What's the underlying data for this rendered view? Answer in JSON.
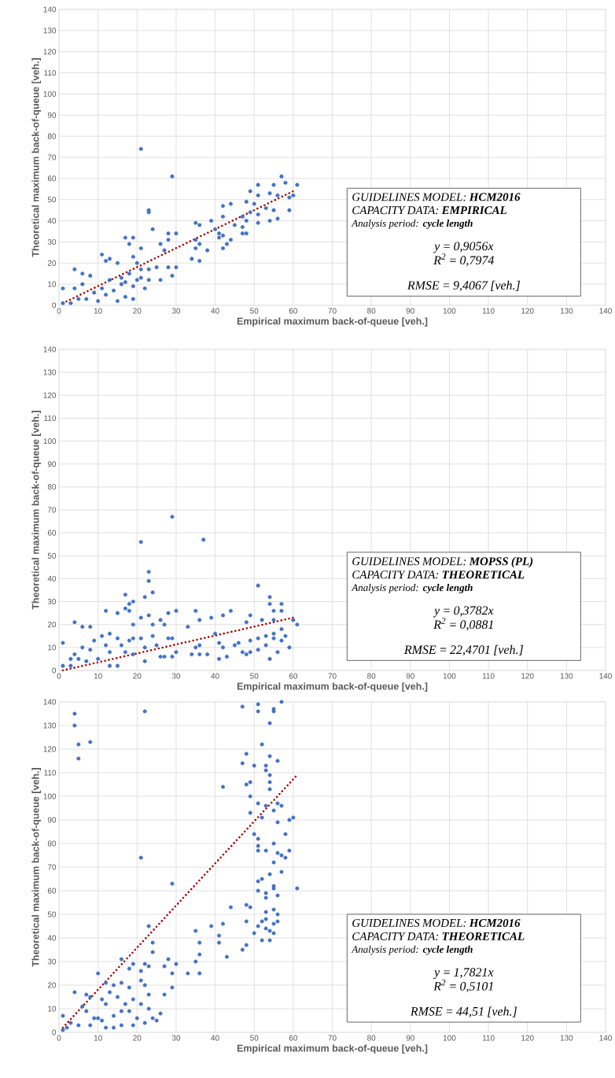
{
  "chart_data": [
    {
      "type": "scatter",
      "xlabel": "Empirical maximum back-of-queue [veh.]",
      "ylabel": "Theoretical maximum back-of-queue [veh.]",
      "xlim": [
        0,
        140
      ],
      "ylim": [
        0,
        140
      ],
      "xticks": [
        0,
        10,
        20,
        30,
        40,
        50,
        60,
        70,
        80,
        90,
        100,
        110,
        120,
        130,
        140
      ],
      "yticks": [
        0,
        10,
        20,
        30,
        40,
        50,
        60,
        70,
        80,
        90,
        100,
        110,
        120,
        130,
        140
      ],
      "grid": true,
      "marker": "circle",
      "annotations": [
        "GUIDELINES MODEL:  **HCM2016**",
        "CAPACITY DATA:  **EMPIRICAL**",
        "Analysis period: **cycle length**",
        "y = 0,9056x",
        "R$^{2}$ = 0,7974",
        "RMSE = 9,4067 [veh.]"
      ],
      "series": [
        {
          "type": "scatter",
          "color": "#4472c4",
          "x": [
            21,
            29,
            57,
            61,
            51,
            55,
            58,
            49,
            51,
            54,
            56,
            59,
            60,
            50,
            53,
            55,
            59,
            44,
            42,
            48,
            49,
            51,
            54,
            56,
            51,
            47,
            48,
            39,
            35,
            36,
            42,
            45,
            47,
            47,
            48,
            40,
            41,
            42,
            41,
            44,
            43,
            42,
            38,
            35,
            36,
            35,
            34,
            36,
            30,
            28,
            28,
            30,
            29,
            28,
            27,
            26,
            23,
            23,
            24,
            21,
            17,
            19,
            18,
            15,
            11,
            12,
            13,
            4,
            6,
            8,
            1,
            4,
            6,
            12,
            13,
            16,
            18,
            20,
            22,
            26,
            23,
            25,
            21,
            17,
            19,
            10,
            15,
            7,
            3,
            1,
            5,
            9,
            11,
            14,
            16,
            17,
            19,
            21,
            23,
            19,
            20
          ],
          "values": [
            74,
            61,
            61,
            57,
            57,
            57,
            58,
            54,
            52,
            53,
            52,
            51,
            52,
            48,
            46,
            45,
            45,
            48,
            47,
            49,
            44,
            43,
            40,
            41,
            39,
            42,
            40,
            40,
            39,
            38,
            42,
            38,
            37,
            34,
            34,
            36,
            34,
            33,
            32,
            31,
            29,
            27,
            26,
            31,
            29,
            27,
            22,
            21,
            34,
            34,
            31,
            18,
            14,
            18,
            26,
            29,
            45,
            44,
            36,
            27,
            32,
            32,
            29,
            20,
            24,
            21,
            22,
            17,
            15,
            14,
            8,
            8,
            10,
            5,
            12,
            13,
            15,
            12,
            8,
            12,
            12,
            18,
            17,
            4,
            3,
            2,
            2,
            3,
            1,
            1,
            3,
            6,
            8,
            7,
            10,
            11,
            9,
            13,
            17,
            23,
            20
          ]
        },
        {
          "type": "line",
          "color": "#a50000",
          "line_style": "dotted",
          "marker": "none",
          "x": [
            1,
            60
          ],
          "values": [
            1,
            54
          ]
        }
      ]
    },
    {
      "type": "scatter",
      "xlabel": "Empirical maximum back-of-queue [veh.]",
      "ylabel": "Theoretical maximum back-of-queue [veh.]",
      "xlim": [
        0,
        140
      ],
      "ylim": [
        0,
        140
      ],
      "xticks": [
        0,
        10,
        20,
        30,
        40,
        50,
        60,
        70,
        80,
        90,
        100,
        110,
        120,
        130,
        140
      ],
      "yticks": [
        0,
        10,
        20,
        30,
        40,
        50,
        60,
        70,
        80,
        90,
        100,
        110,
        120,
        130,
        140
      ],
      "grid": true,
      "marker": "circle",
      "annotations": [
        "GUIDELINES MODEL:  **MOPSS (PL)**",
        "CAPACITY DATA:  **THEORETICAL**",
        "Analysis period: **cycle length**",
        "y = 0,3782x",
        "R$^{2}$ = 0,0881",
        "RMSE = 22,4701 [veh.]"
      ],
      "series": [
        {
          "type": "scatter",
          "color": "#4472c4",
          "x": [
            29,
            37,
            21,
            23,
            23,
            24,
            51,
            54,
            54,
            57,
            55,
            57,
            17,
            18,
            19,
            22,
            12,
            15,
            4,
            6,
            8,
            17,
            18,
            21,
            23,
            28,
            30,
            35,
            36,
            39,
            33,
            42,
            44,
            49,
            48,
            52,
            55,
            60,
            61,
            26,
            24,
            27,
            19,
            29,
            28,
            30,
            27,
            29,
            34,
            36,
            38,
            35,
            36,
            41,
            43,
            42,
            41,
            45,
            46,
            47,
            48,
            49,
            51,
            54,
            56,
            59,
            51,
            53,
            55,
            57,
            58,
            53,
            55,
            57,
            49,
            40,
            1,
            1,
            3,
            4,
            6,
            8,
            9,
            11,
            12,
            13,
            13,
            15,
            15,
            13,
            16,
            17,
            18,
            19,
            19,
            21,
            22,
            22,
            24,
            25,
            26,
            7,
            5,
            10,
            3
          ],
          "values": [
            67,
            57,
            56,
            43,
            39,
            34,
            37,
            32,
            29,
            29,
            26,
            26,
            33,
            29,
            30,
            32,
            26,
            25,
            21,
            19,
            19,
            27,
            26,
            23,
            24,
            25,
            26,
            26,
            22,
            23,
            19,
            24,
            26,
            24,
            21,
            22,
            22,
            22,
            20,
            22,
            20,
            20,
            20,
            14,
            14,
            8,
            6,
            6,
            7,
            7,
            7,
            10,
            11,
            5,
            6,
            10,
            12,
            11,
            12,
            8,
            7,
            8,
            9,
            5,
            8,
            10,
            14,
            15,
            16,
            13,
            15,
            11,
            14,
            18,
            13,
            16,
            12,
            2,
            5,
            7,
            10,
            9,
            13,
            15,
            11,
            16,
            8,
            14,
            2,
            2,
            11,
            8,
            13,
            7,
            14,
            14,
            10,
            4,
            15,
            11,
            6,
            4,
            5,
            5,
            2
          ]
        },
        {
          "type": "line",
          "color": "#a50000",
          "line_style": "dotted",
          "marker": "none",
          "x": [
            1,
            60
          ],
          "values": [
            0,
            23
          ]
        }
      ]
    },
    {
      "type": "scatter",
      "xlabel": "Empirical maximum back-of-queue [veh.]",
      "ylabel": "Theoretical maximum back-of-queue [veh.]",
      "xlim": [
        0,
        140
      ],
      "ylim": [
        0,
        140
      ],
      "xticks": [
        0,
        10,
        20,
        30,
        40,
        50,
        60,
        70,
        80,
        90,
        100,
        110,
        120,
        130,
        140
      ],
      "yticks": [
        0,
        10,
        20,
        30,
        40,
        50,
        60,
        70,
        80,
        90,
        100,
        110,
        120,
        130,
        140
      ],
      "grid": true,
      "marker": "circle",
      "annotations": [
        "GUIDELINES MODEL:  **HCM2016**",
        "CAPACITY DATA:  **THEORETICAL**",
        "Analysis period: **cycle length**",
        "y = 1,7821x",
        "R$^{2}$ = 0,5101",
        "RMSE = 44,51 [veh.]"
      ],
      "series": [
        {
          "type": "scatter",
          "color": "#4472c4",
          "x": [
            4,
            4,
            5,
            5,
            8,
            22,
            47,
            51,
            51,
            55,
            55,
            57,
            54,
            52,
            48,
            47,
            50,
            54,
            53,
            53,
            54,
            56,
            54,
            54,
            42,
            48,
            49,
            49,
            51,
            53,
            55,
            56,
            57,
            49,
            52,
            56,
            59,
            60,
            50,
            51,
            51,
            51,
            53,
            55,
            58,
            56,
            57,
            58,
            59,
            55,
            57,
            54,
            52,
            51,
            51,
            53,
            53,
            55,
            55,
            56,
            61,
            21,
            29,
            44,
            48,
            49,
            53,
            55,
            56,
            56,
            53,
            52,
            51,
            53,
            55,
            48,
            42,
            39,
            41,
            41,
            43,
            47,
            48,
            50,
            52,
            54,
            54,
            55,
            35,
            36,
            36,
            35,
            36,
            33,
            30,
            29,
            29,
            28,
            27,
            27,
            26,
            25,
            24,
            23,
            24,
            24,
            23,
            22,
            21,
            21,
            22,
            23,
            23,
            21,
            22,
            20,
            19,
            19,
            18,
            16,
            18,
            19,
            16,
            15,
            14,
            12,
            10,
            12,
            13,
            11,
            10,
            8,
            7,
            4,
            6,
            7,
            1,
            2,
            3,
            5,
            8,
            9,
            11,
            12,
            14,
            16,
            14,
            16,
            18,
            17,
            1
          ],
          "values": [
            135,
            130,
            122,
            116,
            123,
            136,
            138,
            139,
            136,
            137,
            136,
            140,
            131,
            122,
            118,
            114,
            113,
            117,
            113,
            111,
            109,
            115,
            106,
            103,
            104,
            105,
            106,
            100,
            97,
            96,
            94,
            97,
            96,
            93,
            91,
            89,
            90,
            91,
            84,
            82,
            79,
            77,
            77,
            80,
            84,
            76,
            75,
            74,
            77,
            72,
            68,
            67,
            65,
            64,
            60,
            59,
            57,
            62,
            61,
            58,
            61,
            74,
            63,
            53,
            54,
            53,
            51,
            52,
            50,
            47,
            48,
            47,
            45,
            44,
            46,
            47,
            46,
            45,
            41,
            38,
            32,
            35,
            37,
            42,
            39,
            39,
            43,
            42,
            43,
            38,
            33,
            30,
            25,
            25,
            29,
            25,
            19,
            31,
            28,
            16,
            8,
            5,
            6,
            45,
            38,
            34,
            28,
            29,
            26,
            22,
            20,
            16,
            10,
            12,
            4,
            6,
            3,
            14,
            19,
            31,
            27,
            29,
            21,
            15,
            20,
            12,
            25,
            21,
            17,
            14,
            6,
            15,
            16,
            17,
            11,
            9,
            7,
            2,
            4,
            3,
            3,
            6,
            5,
            2,
            2,
            3,
            7,
            9,
            9,
            12,
            1
          ]
        },
        {
          "type": "line",
          "color": "#a50000",
          "line_style": "dotted",
          "marker": "none",
          "x": [
            1,
            61
          ],
          "values": [
            2,
            109
          ]
        }
      ]
    }
  ]
}
